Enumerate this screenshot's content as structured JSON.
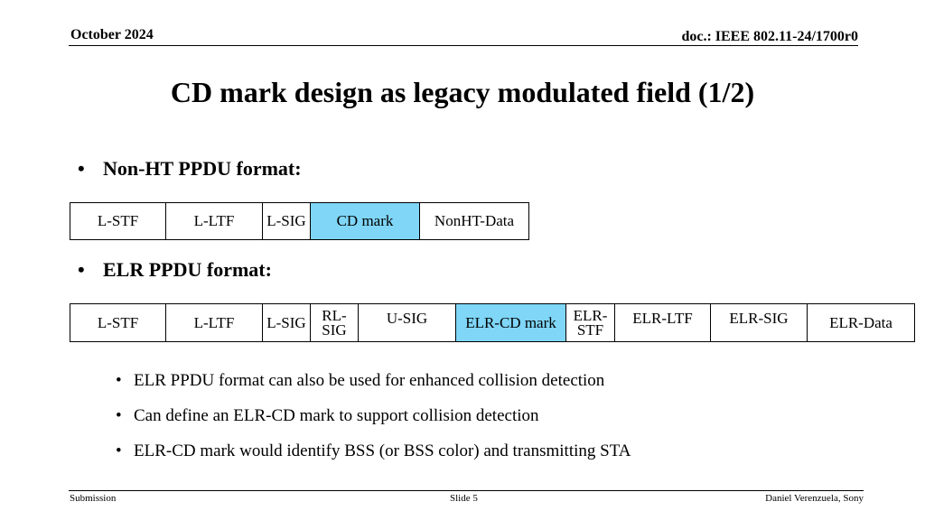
{
  "header": {
    "date": "October 2024",
    "doc": "doc.: IEEE 802.11-24/1700r0"
  },
  "title": "CD mark design as legacy modulated field (1/2)",
  "section1": {
    "bullet": "•",
    "label": "Non-HT PPDU format:"
  },
  "nonht_fields": [
    "L-STF",
    "L-LTF",
    "L-SIG",
    "CD mark",
    "NonHT-Data"
  ],
  "section2": {
    "bullet": "•",
    "label": "ELR PPDU format:"
  },
  "elr_fields": [
    "L-STF",
    "L-LTF",
    "L-SIG",
    "RL-SIG",
    "U-SIG",
    "ELR-CD mark",
    "ELR-STF",
    "ELR-LTF",
    "ELR-SIG",
    "ELR-Data"
  ],
  "sub_bullets": [
    "ELR PPDU format can also be used for enhanced collision detection",
    "Can define an ELR-CD mark to support collision detection",
    "ELR-CD mark would identify BSS (or BSS color) and transmitting STA"
  ],
  "colors": {
    "highlight": "#7fd6f7"
  },
  "footer": {
    "left": "Submission",
    "center": "Slide 5",
    "right": "Daniel Verenzuela, Sony"
  }
}
